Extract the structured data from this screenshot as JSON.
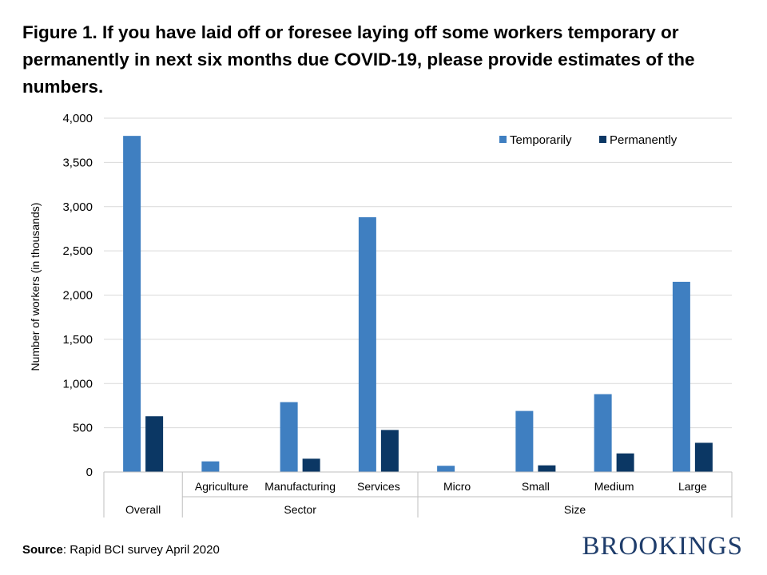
{
  "title": "Figure 1. If you have laid off or foresee laying off some workers temporary or permanently in next six months due COVID-19, please provide estimates of the numbers.",
  "source": {
    "label": "Source",
    "text": ": Rapid BCI survey April 2020"
  },
  "brand": "BROOKINGS",
  "chart_data": {
    "type": "bar",
    "ylabel": "Number of workers (in thousands)",
    "ylim": [
      0,
      4000
    ],
    "yticks": [
      0,
      500,
      1000,
      1500,
      2000,
      2500,
      3000,
      3500,
      4000
    ],
    "ytick_labels": [
      "0",
      "500",
      "1,000",
      "1,500",
      "2,000",
      "2,500",
      "3,000",
      "3,500",
      "4,000"
    ],
    "categories": [
      "Overall",
      "Agriculture",
      "Manufacturing",
      "Services",
      "Micro",
      "Small",
      "Medium",
      "Large"
    ],
    "groups": [
      {
        "label": "",
        "span": 1
      },
      {
        "label": "Sector",
        "span": 3
      },
      {
        "label": "Size",
        "span": 4
      }
    ],
    "series": [
      {
        "name": "Temporarily",
        "color": "#3f7fc1",
        "values": [
          3800,
          120,
          790,
          2880,
          70,
          690,
          880,
          2150
        ]
      },
      {
        "name": "Permanently",
        "color": "#0b3764",
        "values": [
          630,
          0,
          150,
          475,
          0,
          75,
          210,
          330
        ]
      }
    ],
    "legend": "top-right",
    "grid": true
  }
}
